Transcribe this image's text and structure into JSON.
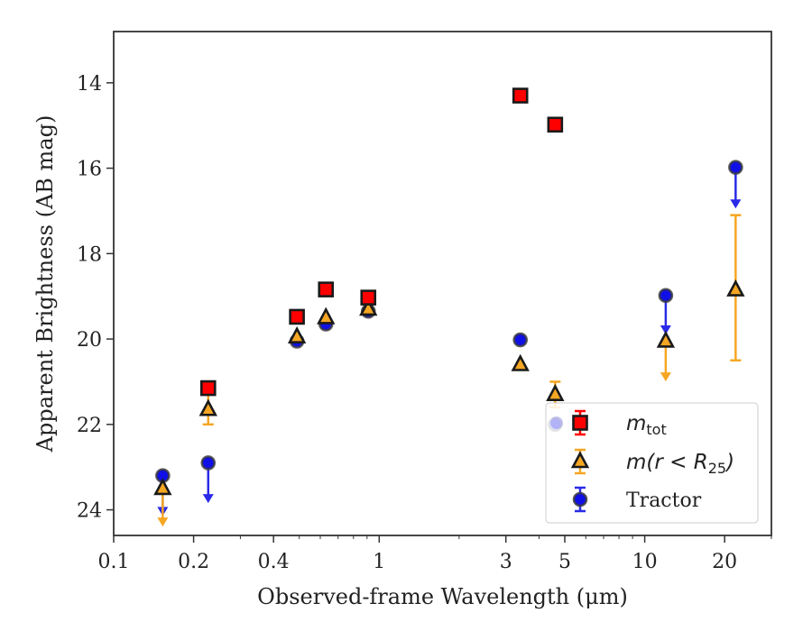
{
  "chart_data": {
    "type": "scatter",
    "xlabel": "Observed-frame Wavelength (μm)",
    "ylabel": "Apparent Brightness (AB mag)",
    "x_scale": "log",
    "xlim": [
      0.1,
      30
    ],
    "ylim": [
      24.6,
      12.8
    ],
    "y_inverted": true,
    "x_ticks": [
      {
        "value": 0.1,
        "label": "0.1"
      },
      {
        "value": 0.2,
        "label": "0.2"
      },
      {
        "value": 0.4,
        "label": "0.4"
      },
      {
        "value": 1,
        "label": "1"
      },
      {
        "value": 3,
        "label": "3"
      },
      {
        "value": 5,
        "label": "5"
      },
      {
        "value": 10,
        "label": "10"
      },
      {
        "value": 20,
        "label": "20"
      }
    ],
    "y_ticks": [
      {
        "value": 14,
        "label": "14"
      },
      {
        "value": 16,
        "label": "16"
      },
      {
        "value": 18,
        "label": "18"
      },
      {
        "value": 20,
        "label": "20"
      },
      {
        "value": 22,
        "label": "22"
      },
      {
        "value": 24,
        "label": "24"
      }
    ],
    "legend": {
      "position": "lower-right"
    },
    "series": [
      {
        "name": "m_tot",
        "label_main": "m",
        "label_sub": "tot",
        "marker": "square",
        "fill": "#ff0000",
        "edge": "#1a1a1a",
        "errcolor": "#ff0000",
        "points": [
          {
            "x": 0.227,
            "y": 21.15
          },
          {
            "x": 0.49,
            "y": 19.48
          },
          {
            "x": 0.63,
            "y": 18.84
          },
          {
            "x": 0.91,
            "y": 19.03
          },
          {
            "x": 3.4,
            "y": 14.3
          },
          {
            "x": 4.6,
            "y": 14.98
          }
        ]
      },
      {
        "name": "m(r < R25)",
        "label_main": "m(r < R",
        "label_sub": "25",
        "label_end": ")",
        "marker": "triangle",
        "fill": "#f5a623",
        "edge": "#1a1a1a",
        "errcolor": "#f5a623",
        "points": [
          {
            "x": 0.153,
            "y": 23.5,
            "upper_limit": true,
            "limit_to": 24.35
          },
          {
            "x": 0.227,
            "y": 21.65,
            "err_low": 21.2,
            "err_high": 22.0
          },
          {
            "x": 0.49,
            "y": 19.95
          },
          {
            "x": 0.63,
            "y": 19.5
          },
          {
            "x": 0.91,
            "y": 19.3
          },
          {
            "x": 3.4,
            "y": 20.6
          },
          {
            "x": 4.6,
            "y": 21.3,
            "err_low": 21.0,
            "err_high": 21.6
          },
          {
            "x": 12.0,
            "y": 20.05,
            "upper_limit": true,
            "limit_to": 20.95
          },
          {
            "x": 22.0,
            "y": 18.85,
            "err_low": 17.1,
            "err_high": 20.5
          }
        ]
      },
      {
        "name": "Tractor",
        "label_main": "Tractor",
        "marker": "circle",
        "fill": "#1010e6",
        "edge": "#3a3a3a",
        "errcolor": "#2a2ae8",
        "points": [
          {
            "x": 0.153,
            "y": 23.2,
            "upper_limit": true,
            "limit_to": 24.1
          },
          {
            "x": 0.227,
            "y": 22.9,
            "upper_limit": true,
            "limit_to": 23.8
          },
          {
            "x": 0.49,
            "y": 20.05
          },
          {
            "x": 0.63,
            "y": 19.65
          },
          {
            "x": 0.91,
            "y": 19.35
          },
          {
            "x": 3.4,
            "y": 20.02
          },
          {
            "x": 4.6,
            "y": 22.0
          },
          {
            "x": 12.0,
            "y": 18.98,
            "upper_limit": true,
            "limit_to": 19.85
          },
          {
            "x": 22.0,
            "y": 15.98,
            "upper_limit": true,
            "limit_to": 16.9
          }
        ]
      }
    ]
  }
}
